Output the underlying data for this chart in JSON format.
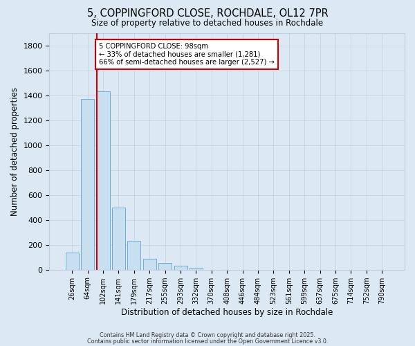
{
  "title": "5, COPPINGFORD CLOSE, ROCHDALE, OL12 7PR",
  "subtitle": "Size of property relative to detached houses in Rochdale",
  "xlabel": "Distribution of detached houses by size in Rochdale",
  "ylabel": "Number of detached properties",
  "bar_labels": [
    "26sqm",
    "64sqm",
    "102sqm",
    "141sqm",
    "179sqm",
    "217sqm",
    "255sqm",
    "293sqm",
    "332sqm",
    "370sqm",
    "408sqm",
    "446sqm",
    "484sqm",
    "523sqm",
    "561sqm",
    "599sqm",
    "637sqm",
    "675sqm",
    "714sqm",
    "752sqm",
    "790sqm"
  ],
  "bar_values": [
    140,
    1370,
    1430,
    500,
    230,
    85,
    55,
    30,
    15,
    0,
    0,
    0,
    0,
    0,
    0,
    0,
    0,
    0,
    0,
    0,
    0
  ],
  "bar_color": "#c8dff0",
  "bar_edge_color": "#6baed6",
  "ylim": [
    0,
    1900
  ],
  "yticks": [
    0,
    200,
    400,
    600,
    800,
    1000,
    1200,
    1400,
    1600,
    1800
  ],
  "property_line_color": "#cc0000",
  "annotation_title": "5 COPPINGFORD CLOSE: 98sqm",
  "annotation_line1": "← 33% of detached houses are smaller (1,281)",
  "annotation_line2": "66% of semi-detached houses are larger (2,527) →",
  "annotation_box_color": "#ffffff",
  "annotation_box_edge": "#cc0000",
  "bg_color": "#dce9f5",
  "grid_color": "#c0cfe0",
  "footer1": "Contains HM Land Registry data © Crown copyright and database right 2025.",
  "footer2": "Contains public sector information licensed under the Open Government Licence v3.0."
}
